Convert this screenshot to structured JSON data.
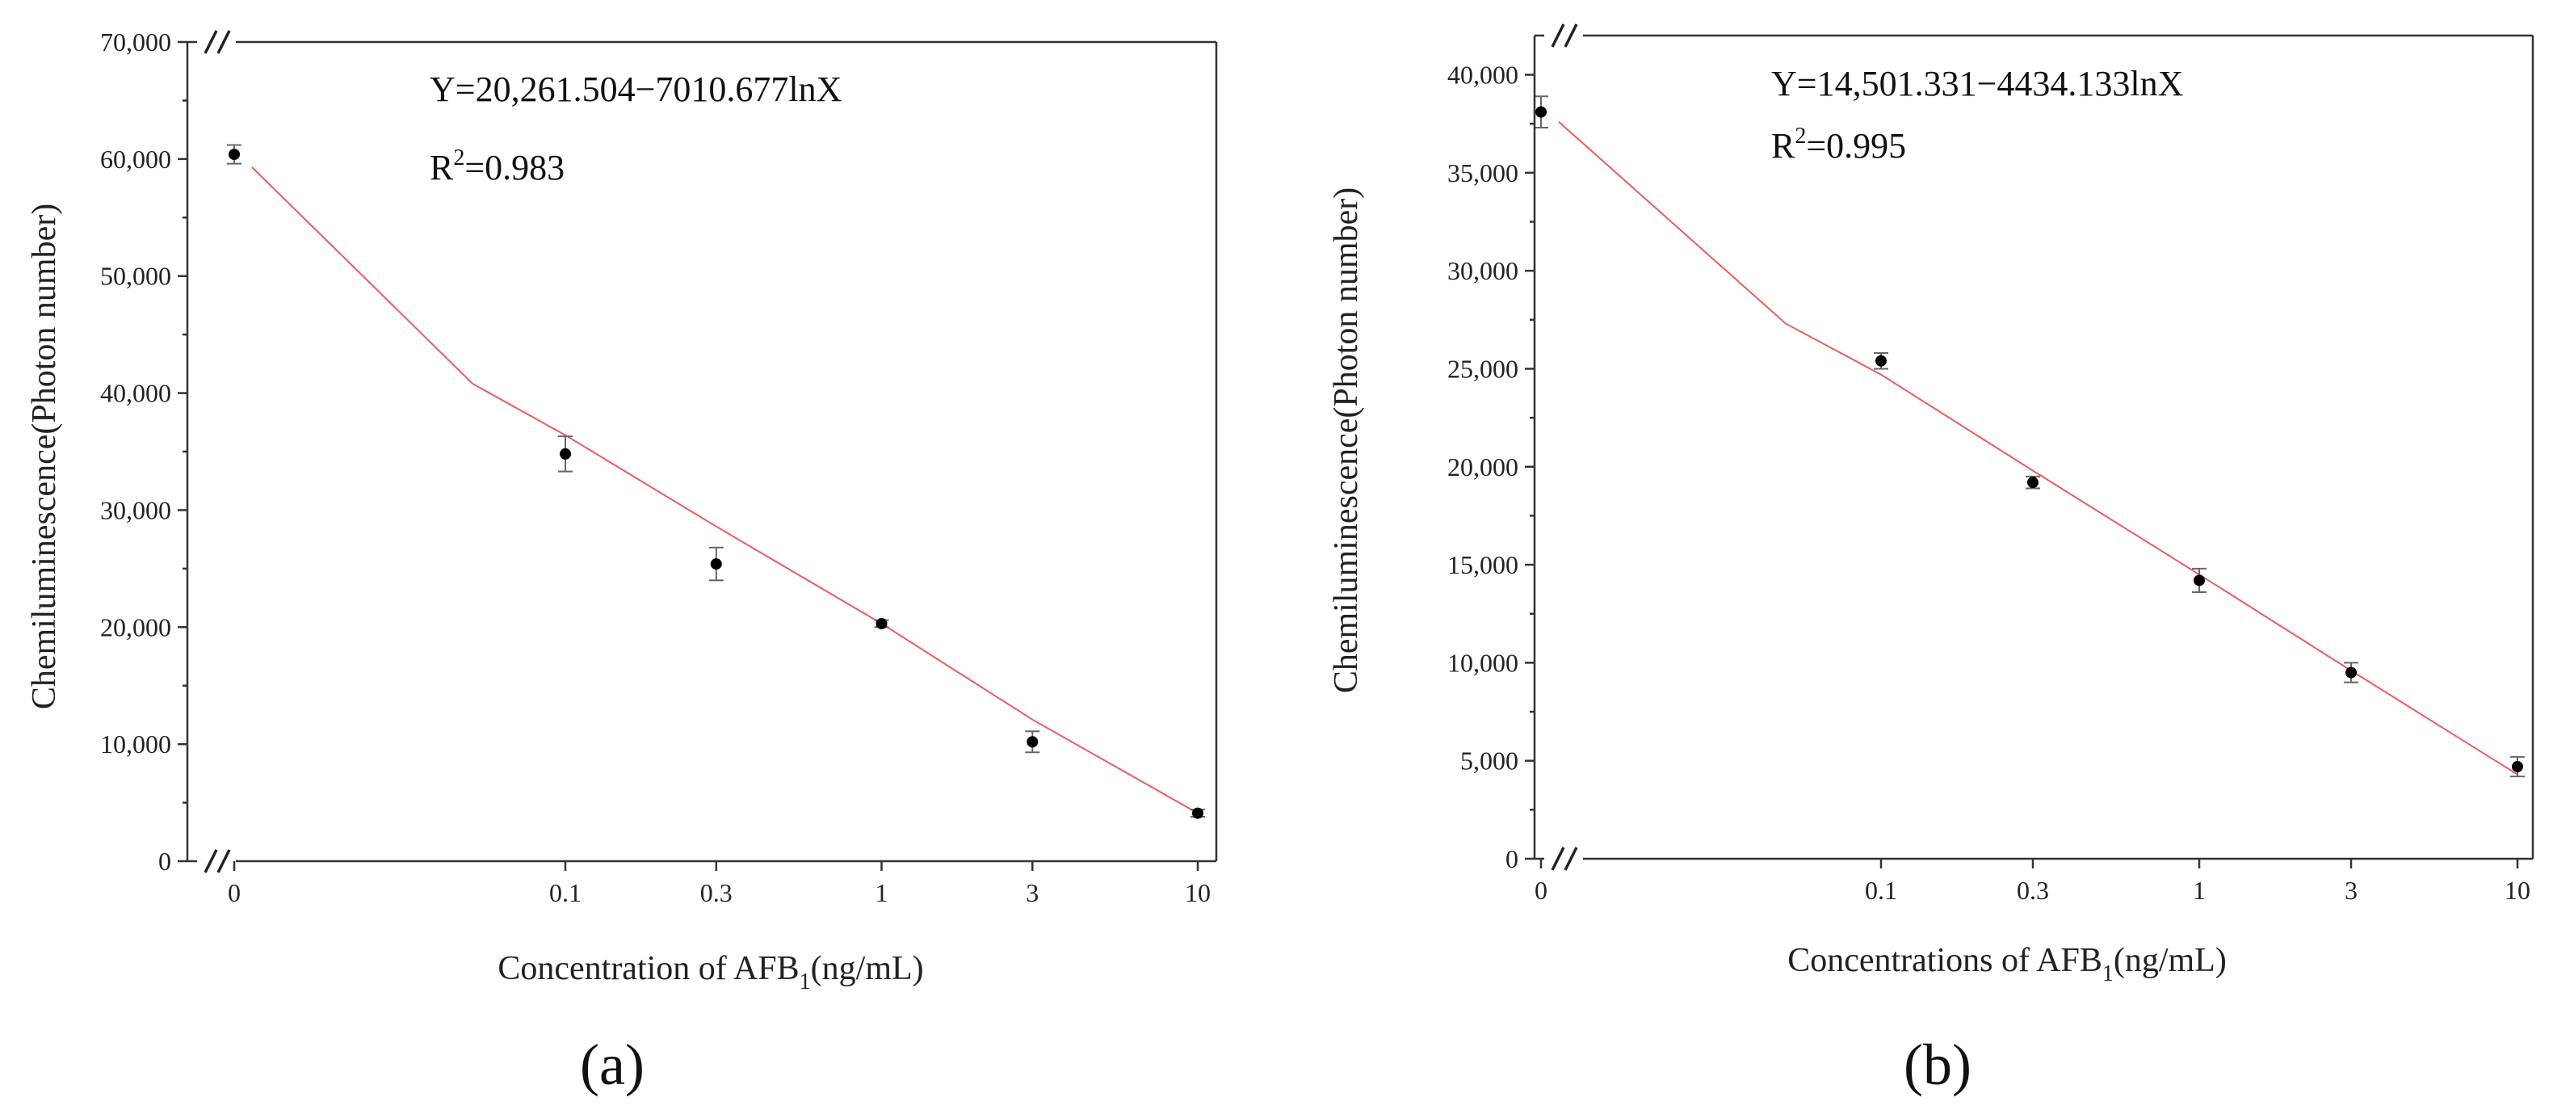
{
  "chart_data": [
    {
      "type": "scatter",
      "panel_label": "(a)",
      "equation": "Y=20,261.504−7010.677lnX",
      "r2_prefix": "R",
      "r2_sup": "2",
      "r2_value": "=0.983",
      "ylabel": "Chemiluminescence(Photon number)",
      "xlabel_main": "Concentration of AFB",
      "xlabel_sub": "1",
      "xlabel_unit": "(ng/mL)",
      "ylim": [
        0,
        70000
      ],
      "y_ticks": [
        0,
        10000,
        20000,
        30000,
        40000,
        50000,
        60000,
        70000
      ],
      "y_tick_labels": [
        "0",
        "10,000",
        "20,000",
        "30,000",
        "40,000",
        "50,000",
        "60,000",
        "70,000"
      ],
      "x_categories": [
        "0",
        "0.1",
        "0.3",
        "1",
        "3",
        "10"
      ],
      "axis_break": true,
      "grid": false,
      "series": [
        {
          "x": [
            0,
            0.1,
            0.3,
            1,
            3,
            10
          ],
          "y": [
            60400,
            34800,
            25400,
            20300,
            10200,
            4100
          ],
          "err": [
            800,
            1500,
            1400,
            300,
            900,
            300
          ]
        }
      ],
      "fit_line": {
        "x": [
          0,
          0.05,
          0.1,
          0.3,
          1,
          3,
          10
        ],
        "y": [
          59300,
          40800,
          36400,
          28600,
          20300,
          12100,
          4100
        ]
      }
    },
    {
      "type": "scatter",
      "panel_label": "(b)",
      "equation": "Y=14,501.331−4434.133lnX",
      "r2_prefix": "R",
      "r2_sup": "2",
      "r2_value": "=0.995",
      "ylabel": "Chemiluminescence(Photon number)",
      "xlabel_main": "Concentrations of AFB",
      "xlabel_sub": "1",
      "xlabel_unit": "(ng/mL)",
      "ylim": [
        0,
        42000
      ],
      "y_ticks": [
        0,
        5000,
        10000,
        15000,
        20000,
        25000,
        30000,
        35000,
        40000
      ],
      "y_tick_labels": [
        "0",
        "5,000",
        "10,000",
        "15,000",
        "20,000",
        "25,000",
        "30,000",
        "35,000",
        "40,000"
      ],
      "x_categories": [
        "0",
        "0.1",
        "0.3",
        "1",
        "3",
        "10"
      ],
      "axis_break": true,
      "grid": false,
      "series": [
        {
          "x": [
            0,
            0.1,
            0.3,
            1,
            3,
            10
          ],
          "y": [
            38100,
            25400,
            19200,
            14200,
            9500,
            4700
          ],
          "err": [
            800,
            400,
            300,
            600,
            500,
            500
          ]
        }
      ],
      "fit_line": {
        "x": [
          0,
          0.05,
          0.1,
          0.3,
          1,
          3,
          10
        ],
        "y": [
          37600,
          27300,
          24700,
          19800,
          14500,
          9600,
          4300
        ]
      }
    }
  ]
}
